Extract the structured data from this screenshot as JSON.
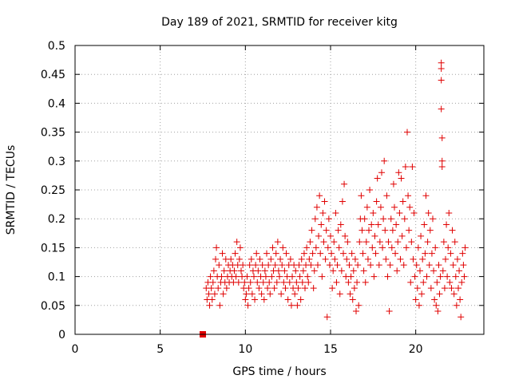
{
  "chart_data": {
    "type": "scatter",
    "title": "Day 189 of 2021, SRMTID for receiver kitg",
    "xlabel": "GPS time / hours",
    "ylabel": "SRMTID / TECUs",
    "xlim": [
      0,
      24
    ],
    "ylim": [
      0,
      0.5
    ],
    "x_ticks": [
      0,
      5,
      10,
      15,
      20
    ],
    "x_tick_labels": [
      "0",
      "5",
      "10",
      "15",
      "20"
    ],
    "y_ticks": [
      0,
      0.05,
      0.1,
      0.15,
      0.2,
      0.25,
      0.3,
      0.35,
      0.4,
      0.45,
      0.5
    ],
    "y_tick_labels": [
      "0",
      "0.05",
      "0.1",
      "0.15",
      "0.2",
      "0.25",
      "0.3",
      "0.35",
      "0.4",
      "0.45",
      "0.5"
    ],
    "grid": true,
    "marker": "plus",
    "color": "#e00000",
    "zero_marker": {
      "x": 7.5,
      "y": 0,
      "shape": "square"
    },
    "points": [
      [
        7.7,
        0.08
      ],
      [
        7.75,
        0.06
      ],
      [
        7.8,
        0.09
      ],
      [
        7.85,
        0.07
      ],
      [
        7.9,
        0.05
      ],
      [
        7.95,
        0.1
      ],
      [
        8.0,
        0.08
      ],
      [
        8.05,
        0.06
      ],
      [
        8.1,
        0.09
      ],
      [
        8.15,
        0.11
      ],
      [
        8.2,
        0.07
      ],
      [
        8.25,
        0.13
      ],
      [
        8.3,
        0.15
      ],
      [
        8.35,
        0.1
      ],
      [
        8.4,
        0.08
      ],
      [
        8.45,
        0.12
      ],
      [
        8.5,
        0.05
      ],
      [
        8.55,
        0.09
      ],
      [
        8.6,
        0.1
      ],
      [
        8.65,
        0.14
      ],
      [
        8.7,
        0.07
      ],
      [
        8.75,
        0.11
      ],
      [
        8.8,
        0.09
      ],
      [
        8.85,
        0.13
      ],
      [
        8.9,
        0.08
      ],
      [
        8.95,
        0.1
      ],
      [
        9.0,
        0.12
      ],
      [
        9.05,
        0.09
      ],
      [
        9.1,
        0.11
      ],
      [
        9.15,
        0.13
      ],
      [
        9.2,
        0.1
      ],
      [
        9.25,
        0.12
      ],
      [
        9.3,
        0.09
      ],
      [
        9.35,
        0.11
      ],
      [
        9.4,
        0.14
      ],
      [
        9.45,
        0.1
      ],
      [
        9.5,
        0.16
      ],
      [
        9.55,
        0.12
      ],
      [
        9.6,
        0.09
      ],
      [
        9.65,
        0.13
      ],
      [
        9.7,
        0.15
      ],
      [
        9.75,
        0.11
      ],
      [
        9.8,
        0.1
      ],
      [
        9.85,
        0.12
      ],
      [
        9.9,
        0.08
      ],
      [
        9.95,
        0.09
      ],
      [
        10.0,
        0.06
      ],
      [
        10.05,
        0.07
      ],
      [
        10.1,
        0.1
      ],
      [
        10.15,
        0.05
      ],
      [
        10.2,
        0.08
      ],
      [
        10.25,
        0.12
      ],
      [
        10.3,
        0.09
      ],
      [
        10.35,
        0.13
      ],
      [
        10.4,
        0.07
      ],
      [
        10.45,
        0.11
      ],
      [
        10.5,
        0.1
      ],
      [
        10.55,
        0.06
      ],
      [
        10.6,
        0.12
      ],
      [
        10.65,
        0.14
      ],
      [
        10.7,
        0.09
      ],
      [
        10.75,
        0.11
      ],
      [
        10.8,
        0.08
      ],
      [
        10.85,
        0.13
      ],
      [
        10.9,
        0.1
      ],
      [
        10.95,
        0.07
      ],
      [
        11.0,
        0.12
      ],
      [
        11.05,
        0.09
      ],
      [
        11.1,
        0.06
      ],
      [
        11.15,
        0.11
      ],
      [
        11.2,
        0.1
      ],
      [
        11.25,
        0.14
      ],
      [
        11.3,
        0.08
      ],
      [
        11.35,
        0.12
      ],
      [
        11.4,
        0.09
      ],
      [
        11.45,
        0.07
      ],
      [
        11.5,
        0.13
      ],
      [
        11.55,
        0.1
      ],
      [
        11.6,
        0.15
      ],
      [
        11.65,
        0.11
      ],
      [
        11.7,
        0.08
      ],
      [
        11.75,
        0.12
      ],
      [
        11.8,
        0.14
      ],
      [
        11.85,
        0.09
      ],
      [
        11.9,
        0.16
      ],
      [
        11.95,
        0.11
      ],
      [
        12.0,
        0.1
      ],
      [
        12.05,
        0.13
      ],
      [
        12.1,
        0.07
      ],
      [
        12.15,
        0.12
      ],
      [
        12.2,
        0.15
      ],
      [
        12.25,
        0.09
      ],
      [
        12.3,
        0.11
      ],
      [
        12.35,
        0.08
      ],
      [
        12.4,
        0.14
      ],
      [
        12.45,
        0.1
      ],
      [
        12.5,
        0.06
      ],
      [
        12.55,
        0.12
      ],
      [
        12.6,
        0.09
      ],
      [
        12.65,
        0.13
      ],
      [
        12.7,
        0.05
      ],
      [
        12.75,
        0.1
      ],
      [
        12.8,
        0.08
      ],
      [
        12.85,
        0.12
      ],
      [
        12.9,
        0.07
      ],
      [
        12.95,
        0.11
      ],
      [
        13.0,
        0.09
      ],
      [
        13.05,
        0.05
      ],
      [
        13.1,
        0.08
      ],
      [
        13.15,
        0.12
      ],
      [
        13.2,
        0.1
      ],
      [
        13.25,
        0.06
      ],
      [
        13.3,
        0.13
      ],
      [
        13.35,
        0.09
      ],
      [
        13.4,
        0.11
      ],
      [
        13.45,
        0.14
      ],
      [
        13.5,
        0.08
      ],
      [
        13.55,
        0.12
      ],
      [
        13.6,
        0.15
      ],
      [
        13.65,
        0.1
      ],
      [
        13.7,
        0.09
      ],
      [
        13.75,
        0.13
      ],
      [
        13.8,
        0.16
      ],
      [
        13.85,
        0.12
      ],
      [
        13.9,
        0.18
      ],
      [
        13.95,
        0.14
      ],
      [
        14.0,
        0.08
      ],
      [
        14.05,
        0.11
      ],
      [
        14.1,
        0.2
      ],
      [
        14.15,
        0.15
      ],
      [
        14.2,
        0.22
      ],
      [
        14.25,
        0.12
      ],
      [
        14.3,
        0.17
      ],
      [
        14.35,
        0.24
      ],
      [
        14.4,
        0.14
      ],
      [
        14.45,
        0.19
      ],
      [
        14.5,
        0.1
      ],
      [
        14.55,
        0.21
      ],
      [
        14.6,
        0.16
      ],
      [
        14.65,
        0.23
      ],
      [
        14.7,
        0.13
      ],
      [
        14.75,
        0.18
      ],
      [
        14.8,
        0.03
      ],
      [
        14.85,
        0.15
      ],
      [
        14.9,
        0.2
      ],
      [
        14.95,
        0.12
      ],
      [
        15.0,
        0.17
      ],
      [
        15.05,
        0.14
      ],
      [
        15.1,
        0.08
      ],
      [
        15.15,
        0.11
      ],
      [
        15.2,
        0.16
      ],
      [
        15.25,
        0.13
      ],
      [
        15.3,
        0.21
      ],
      [
        15.35,
        0.09
      ],
      [
        15.4,
        0.12
      ],
      [
        15.45,
        0.18
      ],
      [
        15.5,
        0.15
      ],
      [
        15.55,
        0.07
      ],
      [
        15.6,
        0.19
      ],
      [
        15.65,
        0.11
      ],
      [
        15.7,
        0.23
      ],
      [
        15.75,
        0.14
      ],
      [
        15.8,
        0.26
      ],
      [
        15.85,
        0.17
      ],
      [
        15.9,
        0.1
      ],
      [
        15.95,
        0.13
      ],
      [
        16.0,
        0.16
      ],
      [
        16.05,
        0.09
      ],
      [
        16.1,
        0.12
      ],
      [
        16.15,
        0.07
      ],
      [
        16.2,
        0.1
      ],
      [
        16.25,
        0.14
      ],
      [
        16.3,
        0.06
      ],
      [
        16.35,
        0.11
      ],
      [
        16.4,
        0.08
      ],
      [
        16.45,
        0.13
      ],
      [
        16.5,
        0.04
      ],
      [
        16.55,
        0.09
      ],
      [
        16.6,
        0.12
      ],
      [
        16.65,
        0.05
      ],
      [
        16.7,
        0.16
      ],
      [
        16.75,
        0.2
      ],
      [
        16.8,
        0.24
      ],
      [
        16.85,
        0.18
      ],
      [
        16.9,
        0.14
      ],
      [
        16.95,
        0.11
      ],
      [
        17.0,
        0.2
      ],
      [
        17.05,
        0.09
      ],
      [
        17.1,
        0.16
      ],
      [
        17.15,
        0.22
      ],
      [
        17.2,
        0.13
      ],
      [
        17.25,
        0.18
      ],
      [
        17.3,
        0.25
      ],
      [
        17.35,
        0.12
      ],
      [
        17.4,
        0.19
      ],
      [
        17.45,
        0.15
      ],
      [
        17.5,
        0.21
      ],
      [
        17.55,
        0.1
      ],
      [
        17.6,
        0.17
      ],
      [
        17.65,
        0.14
      ],
      [
        17.7,
        0.23
      ],
      [
        17.75,
        0.27
      ],
      [
        17.8,
        0.19
      ],
      [
        17.85,
        0.12
      ],
      [
        17.9,
        0.16
      ],
      [
        17.95,
        0.22
      ],
      [
        18.0,
        0.28
      ],
      [
        18.05,
        0.15
      ],
      [
        18.1,
        0.2
      ],
      [
        18.15,
        0.3
      ],
      [
        18.2,
        0.18
      ],
      [
        18.25,
        0.13
      ],
      [
        18.3,
        0.24
      ],
      [
        18.35,
        0.1
      ],
      [
        18.4,
        0.16
      ],
      [
        18.45,
        0.04
      ],
      [
        18.5,
        0.12
      ],
      [
        18.55,
        0.2
      ],
      [
        18.6,
        0.15
      ],
      [
        18.65,
        0.18
      ],
      [
        18.7,
        0.26
      ],
      [
        18.75,
        0.22
      ],
      [
        18.8,
        0.14
      ],
      [
        18.85,
        0.19
      ],
      [
        18.9,
        0.11
      ],
      [
        18.95,
        0.16
      ],
      [
        19.0,
        0.28
      ],
      [
        19.05,
        0.21
      ],
      [
        19.1,
        0.13
      ],
      [
        19.15,
        0.27
      ],
      [
        19.2,
        0.17
      ],
      [
        19.25,
        0.23
      ],
      [
        19.3,
        0.12
      ],
      [
        19.35,
        0.2
      ],
      [
        19.4,
        0.29
      ],
      [
        19.45,
        0.15
      ],
      [
        19.5,
        0.35
      ],
      [
        19.55,
        0.24
      ],
      [
        19.6,
        0.18
      ],
      [
        19.65,
        0.22
      ],
      [
        19.7,
        0.09
      ],
      [
        19.75,
        0.16
      ],
      [
        19.8,
        0.29
      ],
      [
        19.85,
        0.13
      ],
      [
        19.9,
        0.21
      ],
      [
        19.95,
        0.1
      ],
      [
        20.0,
        0.06
      ],
      [
        20.05,
        0.12
      ],
      [
        20.1,
        0.08
      ],
      [
        20.15,
        0.15
      ],
      [
        20.2,
        0.05
      ],
      [
        20.25,
        0.11
      ],
      [
        20.3,
        0.17
      ],
      [
        20.35,
        0.07
      ],
      [
        20.4,
        0.13
      ],
      [
        20.45,
        0.09
      ],
      [
        20.5,
        0.19
      ],
      [
        20.55,
        0.14
      ],
      [
        20.6,
        0.24
      ],
      [
        20.65,
        0.1
      ],
      [
        20.7,
        0.16
      ],
      [
        20.75,
        0.21
      ],
      [
        20.8,
        0.12
      ],
      [
        20.85,
        0.18
      ],
      [
        20.9,
        0.08
      ],
      [
        20.95,
        0.14
      ],
      [
        21.0,
        0.2
      ],
      [
        21.05,
        0.11
      ],
      [
        21.1,
        0.06
      ],
      [
        21.15,
        0.15
      ],
      [
        21.2,
        0.05
      ],
      [
        21.25,
        0.09
      ],
      [
        21.3,
        0.04
      ],
      [
        21.35,
        0.12
      ],
      [
        21.4,
        0.07
      ],
      [
        21.45,
        0.1
      ],
      [
        21.5,
        0.47
      ],
      [
        21.5,
        0.46
      ],
      [
        21.5,
        0.44
      ],
      [
        21.5,
        0.39
      ],
      [
        21.55,
        0.34
      ],
      [
        21.55,
        0.3
      ],
      [
        21.55,
        0.29
      ],
      [
        21.6,
        0.11
      ],
      [
        21.65,
        0.16
      ],
      [
        21.7,
        0.08
      ],
      [
        21.75,
        0.13
      ],
      [
        21.8,
        0.19
      ],
      [
        21.85,
        0.1
      ],
      [
        21.9,
        0.15
      ],
      [
        21.95,
        0.21
      ],
      [
        22.0,
        0.09
      ],
      [
        22.05,
        0.14
      ],
      [
        22.1,
        0.08
      ],
      [
        22.15,
        0.18
      ],
      [
        22.2,
        0.12
      ],
      [
        22.25,
        0.07
      ],
      [
        22.3,
        0.16
      ],
      [
        22.35,
        0.1
      ],
      [
        22.4,
        0.05
      ],
      [
        22.45,
        0.13
      ],
      [
        22.5,
        0.08
      ],
      [
        22.55,
        0.11
      ],
      [
        22.6,
        0.06
      ],
      [
        22.65,
        0.03
      ],
      [
        22.7,
        0.09
      ],
      [
        22.75,
        0.14
      ],
      [
        22.8,
        0.12
      ],
      [
        22.85,
        0.1
      ],
      [
        22.9,
        0.15
      ]
    ]
  }
}
